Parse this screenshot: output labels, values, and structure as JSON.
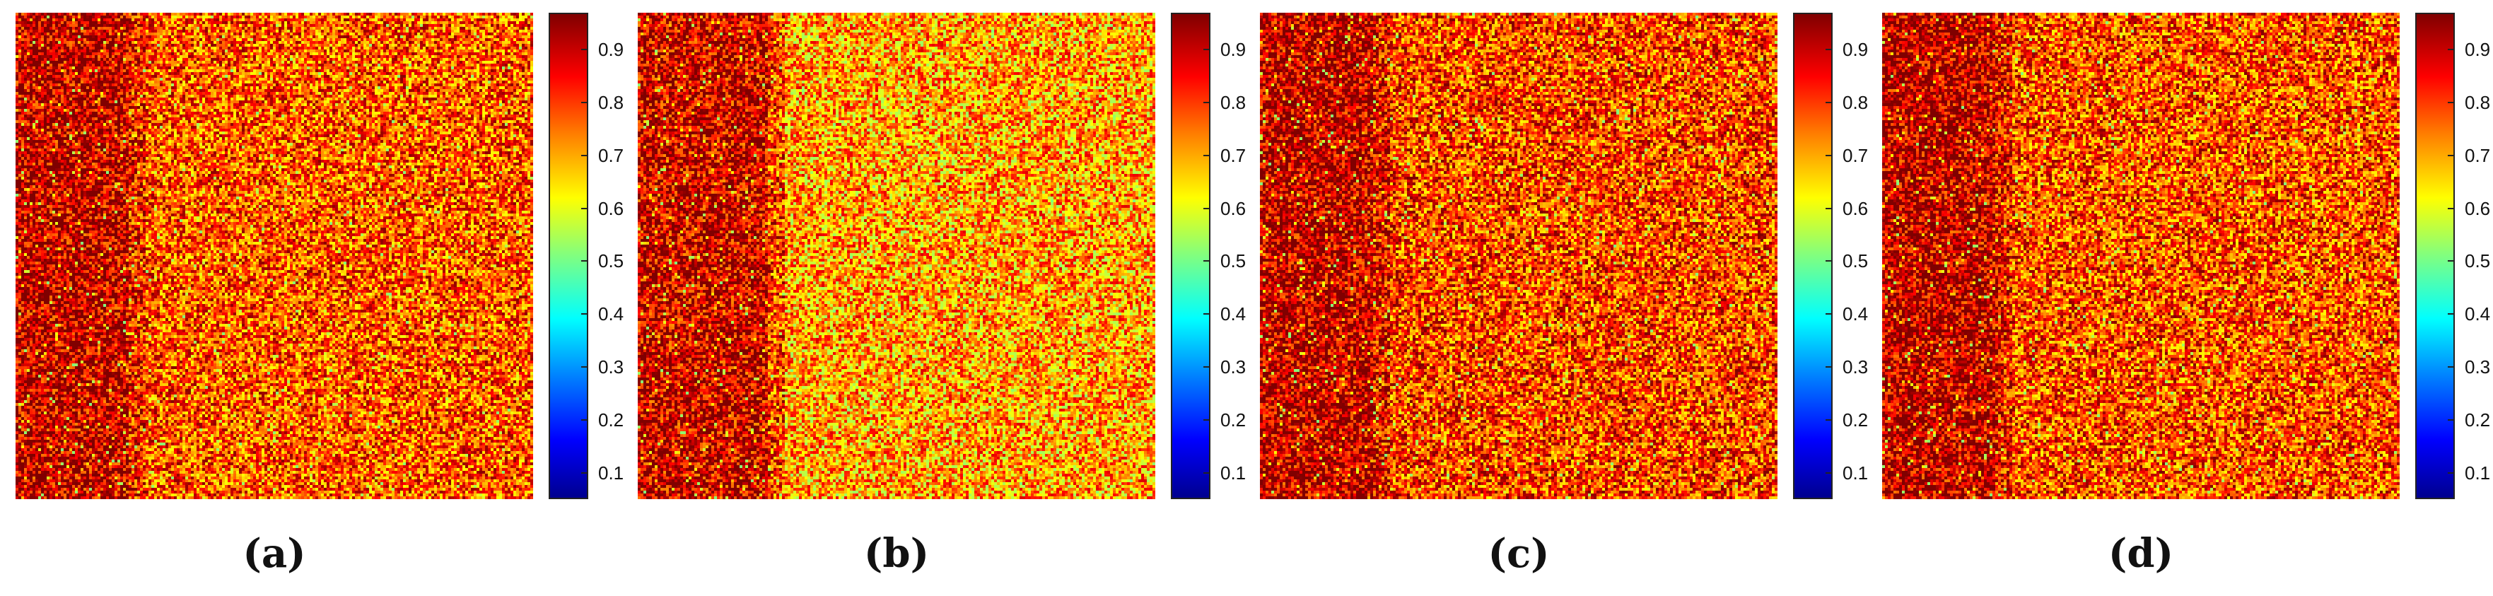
{
  "colormap": "jet",
  "panels": [
    {
      "id": "a",
      "label": "(a)",
      "base_tone": 0.8,
      "left_band_tone": 0.93
    },
    {
      "id": "b",
      "label": "(b)",
      "base_tone": 0.72,
      "left_band_tone": 0.92
    },
    {
      "id": "c",
      "label": "(c)",
      "base_tone": 0.82,
      "left_band_tone": 0.94
    },
    {
      "id": "d",
      "label": "(d)",
      "base_tone": 0.81,
      "left_band_tone": 0.94
    }
  ],
  "colorbar": {
    "range": [
      0.05,
      0.97
    ],
    "ticks": [
      "0.1",
      "0.2",
      "0.3",
      "0.4",
      "0.5",
      "0.6",
      "0.7",
      "0.8",
      "0.9"
    ],
    "tick_values": [
      0.1,
      0.2,
      0.3,
      0.4,
      0.5,
      0.6,
      0.7,
      0.8,
      0.9
    ]
  }
}
